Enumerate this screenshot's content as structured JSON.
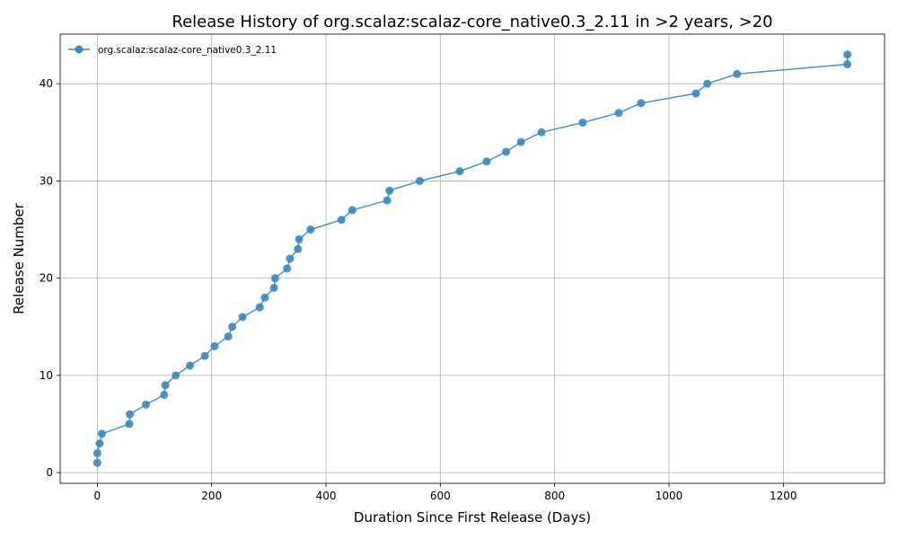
{
  "chart_data": {
    "type": "line",
    "title": "Release History of org.scalaz:scalaz-core_native0.3_2.11 in >2 years, >20",
    "xlabel": "Duration Since First Release (Days)",
    "ylabel": "Release Number",
    "xlim": [
      -65,
      1377
    ],
    "ylim": [
      -1.1,
      45.1
    ],
    "xticks": [
      0,
      200,
      400,
      600,
      800,
      1000,
      1200
    ],
    "yticks": [
      0,
      10,
      20,
      30,
      40
    ],
    "grid": true,
    "legend_position": "top-left",
    "color": "#3a87c0",
    "series": [
      {
        "name": "org.scalaz:scalaz-core_native0.3_2.11",
        "x": [
          0,
          0,
          4,
          8,
          56,
          57,
          85,
          117,
          119,
          137,
          162,
          188,
          205,
          229,
          236,
          254,
          284,
          293,
          309,
          311,
          332,
          337,
          351,
          353,
          373,
          427,
          446,
          507,
          511,
          564,
          634,
          681,
          715,
          741,
          777,
          849,
          912,
          951,
          1047,
          1067,
          1119,
          1312,
          1312
        ],
        "y": [
          1,
          2,
          3,
          4,
          5,
          6,
          7,
          8,
          9,
          10,
          11,
          12,
          13,
          14,
          15,
          16,
          17,
          18,
          19,
          20,
          21,
          22,
          23,
          24,
          25,
          26,
          27,
          28,
          29,
          30,
          31,
          32,
          33,
          34,
          35,
          36,
          37,
          38,
          39,
          40,
          41,
          42,
          43
        ]
      }
    ]
  }
}
